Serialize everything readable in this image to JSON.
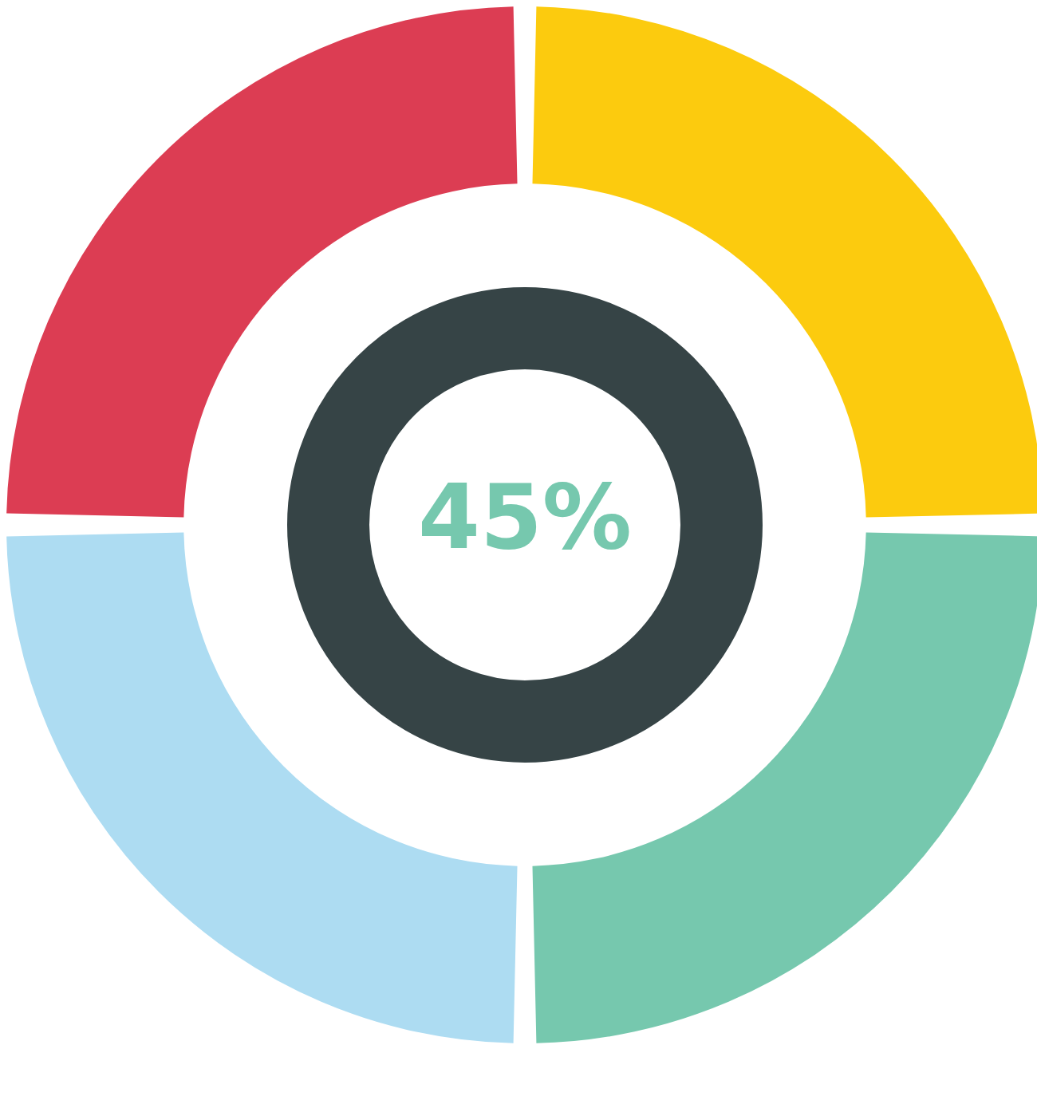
{
  "chart_data": {
    "type": "donut",
    "categories": [
      null,
      null,
      null,
      null
    ],
    "values": [
      25,
      25,
      25,
      25
    ],
    "colors": [
      "#fccb0e",
      "#76c8ae",
      "#addcf2",
      "#dc3d53"
    ],
    "annotations": [
      "45%"
    ]
  }
}
